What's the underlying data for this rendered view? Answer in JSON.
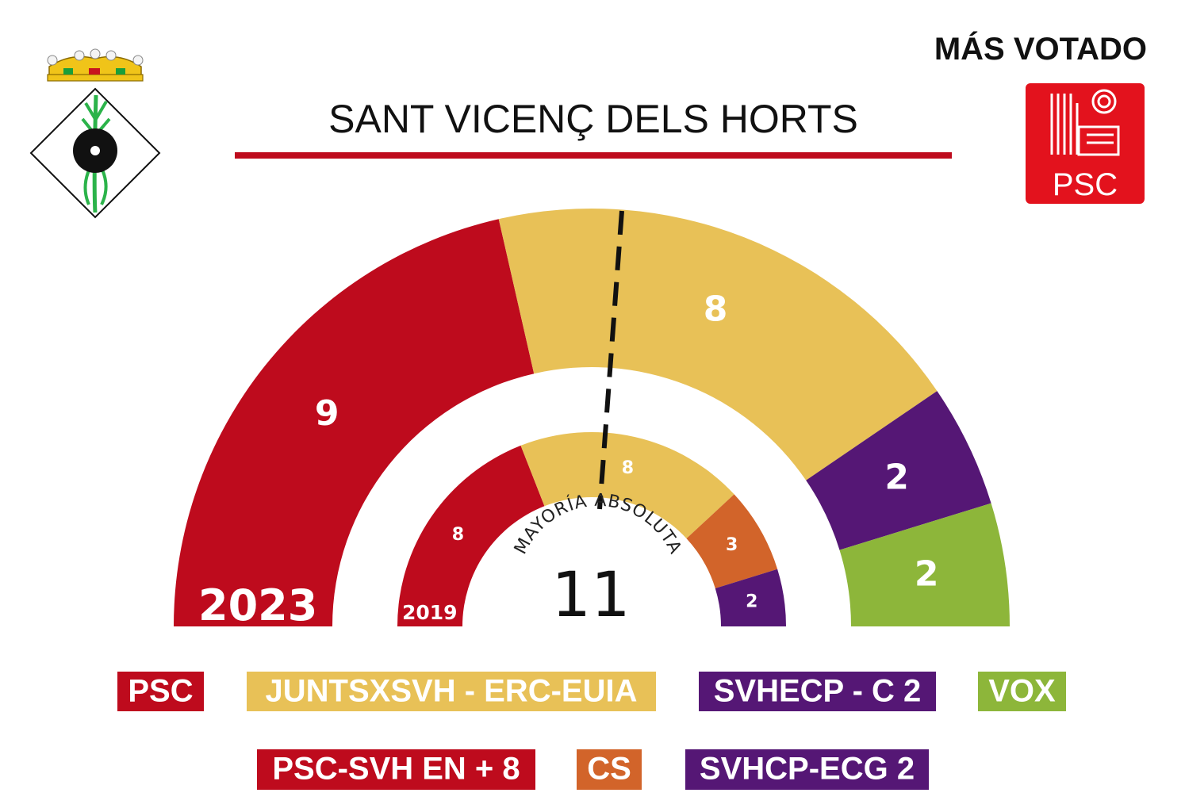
{
  "header": {
    "title": "SANT VICENÇ DELS HORTS",
    "most_voted_label": "MÁS VOTADO",
    "most_voted_party_logo_text": "PSC"
  },
  "colors": {
    "psc": "#be0b1d",
    "junts_erc": "#e8c157",
    "svhecp": "#551775",
    "vox": "#8db63a",
    "cs": "#d2642a",
    "title_rule": "#be0b1d",
    "logo_red": "#e3121d"
  },
  "chart_data": [
    {
      "type": "pie",
      "variant": "parliament-hemicycle",
      "year_label": "2023",
      "total_seats": 21,
      "majority": {
        "label": "MAYORÍA ABSOLUTA",
        "value": 11
      },
      "segments": [
        {
          "party": "PSC",
          "seats": 9,
          "color": "#be0b1d"
        },
        {
          "party": "JUNTSXSVH - ERC-EUIA",
          "seats": 8,
          "color": "#e8c157"
        },
        {
          "party": "SVHECP - C 2",
          "seats": 2,
          "color": "#551775"
        },
        {
          "party": "VOX",
          "seats": 2,
          "color": "#8db63a"
        }
      ]
    },
    {
      "type": "pie",
      "variant": "parliament-hemicycle",
      "year_label": "2019",
      "total_seats": 21,
      "segments": [
        {
          "party": "PSC-SVH EN + 8",
          "seats": 8,
          "color": "#be0b1d"
        },
        {
          "party": "JUNTSXSVH - ERC-EUIA",
          "seats": 8,
          "color": "#e8c157"
        },
        {
          "party": "CS",
          "seats": 3,
          "color": "#d2642a"
        },
        {
          "party": "SVHCP-ECG 2",
          "seats": 2,
          "color": "#551775"
        }
      ]
    }
  ],
  "legend": {
    "row1": [
      {
        "label": "PSC",
        "color": "#be0b1d"
      },
      {
        "label": "JUNTSXSVH - ERC-EUIA",
        "color": "#e8c157"
      },
      {
        "label": "SVHECP - C 2",
        "color": "#551775"
      },
      {
        "label": "VOX",
        "color": "#8db63a"
      }
    ],
    "row2": [
      {
        "label": "PSC-SVH EN + 8",
        "color": "#be0b1d"
      },
      {
        "label": "CS",
        "color": "#d2642a"
      },
      {
        "label": "SVHCP-ECG 2",
        "color": "#551775"
      }
    ]
  }
}
